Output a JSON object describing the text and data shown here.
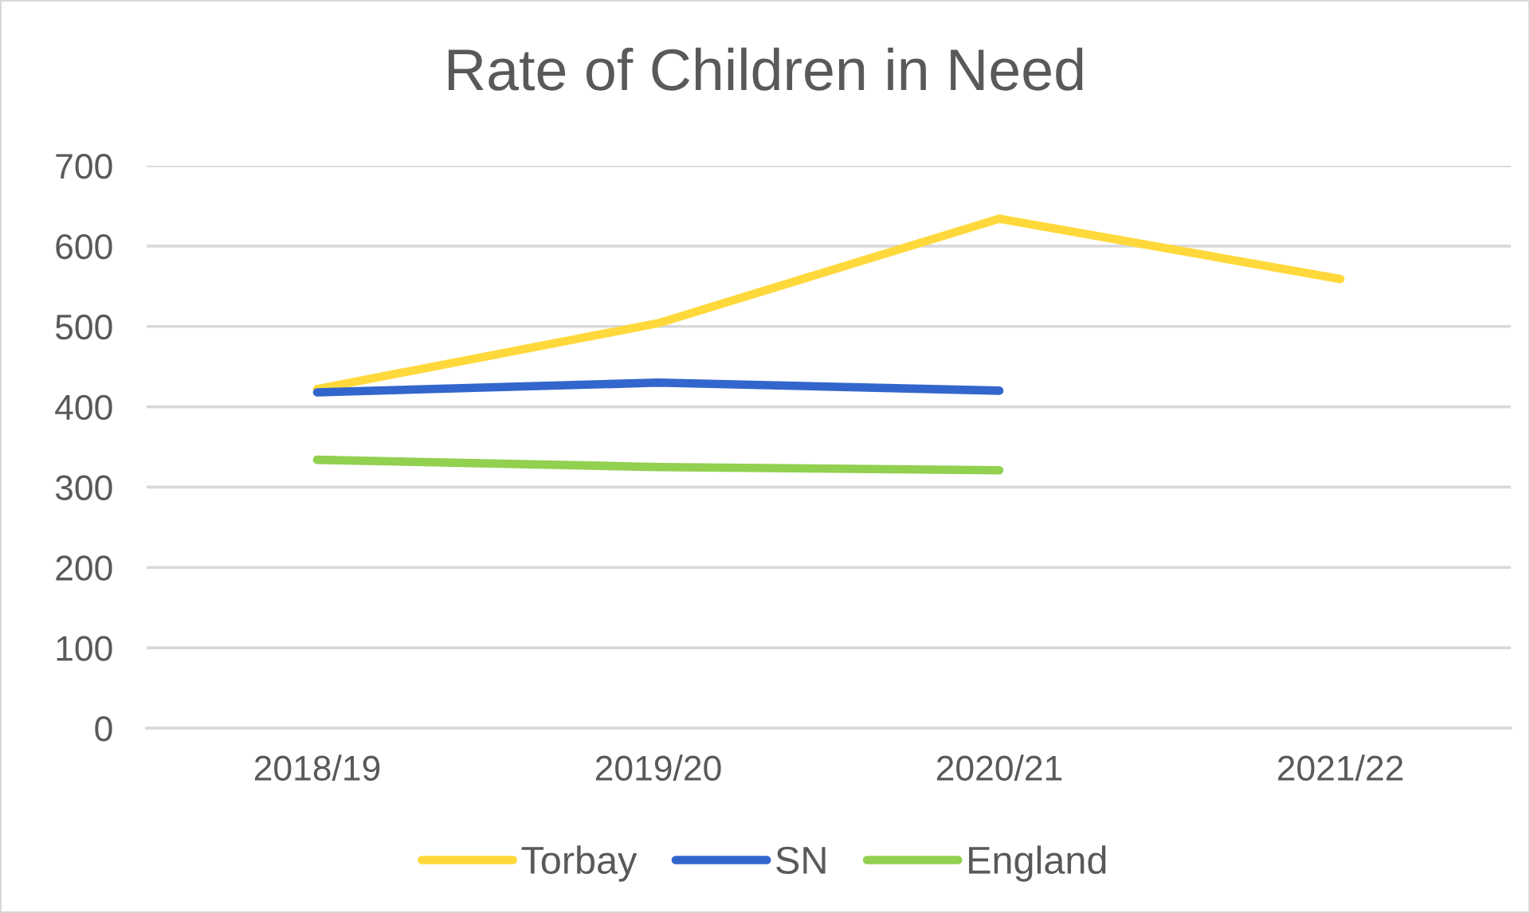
{
  "chart_data": {
    "type": "line",
    "title": "Rate of Children in Need",
    "categories": [
      "2018/19",
      "2019/20",
      "2020/21",
      "2021/22"
    ],
    "series": [
      {
        "name": "Torbay",
        "color": "#ffd93b",
        "values": [
          422,
          504,
          634,
          559
        ]
      },
      {
        "name": "SN",
        "color": "#3366cc",
        "values": [
          418,
          430,
          420,
          null
        ]
      },
      {
        "name": "England",
        "color": "#92d050",
        "values": [
          334,
          325,
          321,
          null
        ]
      }
    ],
    "ylim": [
      0,
      700
    ],
    "yticks": [
      0,
      100,
      200,
      300,
      400,
      500,
      600,
      700
    ],
    "grid": "y",
    "legend": "bottom",
    "marker": "none",
    "line_style": "solid"
  }
}
